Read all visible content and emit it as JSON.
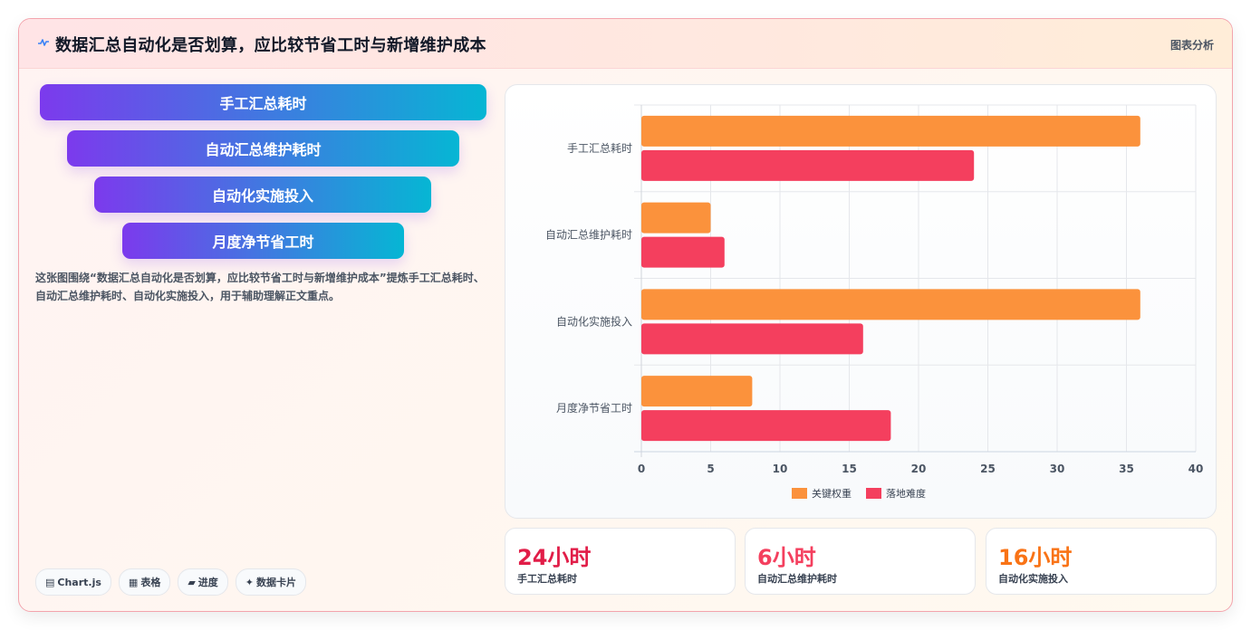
{
  "header": {
    "title": "数据汇总自动化是否划算，应比较节省工时与新增维护成本",
    "tag": "图表分析"
  },
  "funnel": {
    "steps": [
      "手工汇总耗时",
      "自动汇总维护耗时",
      "自动化实施投入",
      "月度净节省工时"
    ]
  },
  "description": "这张图围绕“数据汇总自动化是否划算，应比较节省工时与新增维护成本”提炼手工汇总耗时、自动汇总维护耗时、自动化实施投入，用于辅助理解正文重点。",
  "pills": [
    {
      "icon": "▤",
      "label": "Chart.js"
    },
    {
      "icon": "▦",
      "label": "表格"
    },
    {
      "icon": "▰",
      "label": "进度"
    },
    {
      "icon": "✦",
      "label": "数据卡片"
    }
  ],
  "chart_data": {
    "type": "bar",
    "orientation": "horizontal",
    "categories": [
      "手工汇总耗时",
      "自动汇总维护耗时",
      "自动化实施投入",
      "月度净节省工时"
    ],
    "series": [
      {
        "name": "关键权重",
        "values": [
          36,
          5,
          36,
          8
        ],
        "color": "#fb923c"
      },
      {
        "name": "落地难度",
        "values": [
          24,
          6,
          16,
          18
        ],
        "color": "#f43f5e"
      }
    ],
    "xlim": [
      0,
      40
    ],
    "xticks": [
      0,
      5,
      10,
      15,
      20,
      25,
      30,
      35,
      40
    ],
    "grid": true,
    "legend": "bottom"
  },
  "kpis": [
    {
      "value": "24小时",
      "label": "手工汇总耗时",
      "color": "#e11d48"
    },
    {
      "value": "6小时",
      "label": "自动汇总维护耗时",
      "color": "#f43f5e"
    },
    {
      "value": "16小时",
      "label": "自动化实施投入",
      "color": "#f97316"
    }
  ],
  "colors": {
    "gradient_start": "#7c3aed",
    "gradient_end": "#06b6d4",
    "border": "#f3a4ad"
  }
}
